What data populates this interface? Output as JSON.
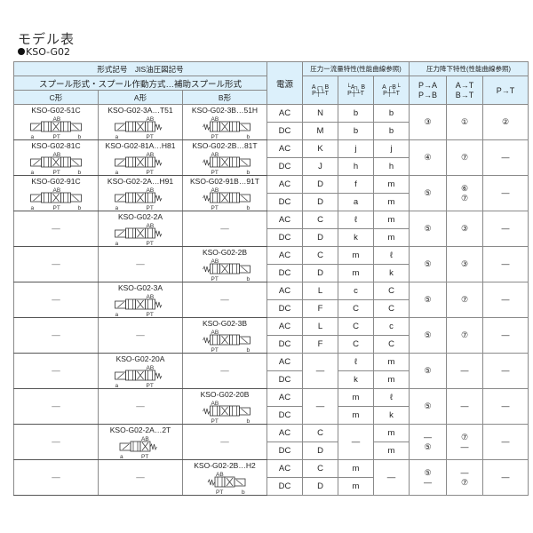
{
  "page": {
    "title": "モデル表",
    "subtitle": "KSO-G02"
  },
  "header": {
    "model_symbol": "形式記号　JIS油圧図記号",
    "spool_type": "スプール形式・スプール作動方式…補助スプール形式",
    "c_type": "C形",
    "a_type": "A形",
    "b_type": "B形",
    "power": "電源",
    "flow_char": "圧力ー流量特性(性能曲線参照)",
    "pressure_drop": "圧力降下特性(性能曲線参照)",
    "flow_symbols": [
      {
        "top": "A┌┐B",
        "bottom": "P┼┴T"
      },
      {
        "top": "└A┐ B",
        "bottom": "P┼┴T"
      },
      {
        "top": "A ┌B└",
        "bottom": "P┼┴T"
      }
    ],
    "pa": [
      "P→A",
      "P→B"
    ],
    "at": [
      "A→T",
      "B→T"
    ],
    "pt": "P→T"
  },
  "symbol_labels": {
    "ports_top": "AB",
    "ports_bottom": "PT",
    "sol_a": "a",
    "sol_b": "b"
  },
  "groups": [
    {
      "c": {
        "model": "KSO-G02-51C",
        "symbol": "double-3pos"
      },
      "a": {
        "model": "KSO-G02-3A…T51",
        "symbol": "single-a"
      },
      "b": {
        "model": "KSO-G02-3B…51H",
        "symbol": "single-b"
      },
      "flow": [
        {
          "ac": "N",
          "dc": "M"
        },
        {
          "ac": "b",
          "dc": "b"
        },
        {
          "ac": "b",
          "dc": "b"
        }
      ],
      "pa": [
        "③"
      ],
      "at": [
        "①"
      ],
      "pt": [
        "②"
      ]
    },
    {
      "c": {
        "model": "KSO-G02-81C",
        "symbol": "double-3pos"
      },
      "a": {
        "model": "KSO-G02-81A…H81",
        "symbol": "single-a"
      },
      "b": {
        "model": "KSO-G02-2B…81T",
        "symbol": "single-b"
      },
      "flow": [
        {
          "ac": "K",
          "dc": "J"
        },
        {
          "ac": "j",
          "dc": "h"
        },
        {
          "ac": "j",
          "dc": "h"
        }
      ],
      "pa": [
        "④"
      ],
      "at": [
        "⑦"
      ],
      "pt": [
        "—"
      ]
    },
    {
      "c": {
        "model": "KSO-G02-91C",
        "symbol": "double-3pos"
      },
      "a": {
        "model": "KSO-G02-2A…H91",
        "symbol": "single-a"
      },
      "b": {
        "model": "KSO-G02-91B…91T",
        "symbol": "single-b"
      },
      "flow": [
        {
          "ac": "D",
          "dc": "D"
        },
        {
          "ac": "f",
          "dc": "a"
        },
        {
          "ac": "m",
          "dc": "m"
        }
      ],
      "pa": [
        "⑤"
      ],
      "at": [
        "⑥",
        "⑦"
      ],
      "pt": [
        "—"
      ]
    },
    {
      "c": null,
      "a": {
        "model": "KSO-G02-2A",
        "symbol": "single-a"
      },
      "b": null,
      "flow": [
        {
          "ac": "C",
          "dc": "D"
        },
        {
          "ac": "ℓ",
          "dc": "k"
        },
        {
          "ac": "m",
          "dc": "m"
        }
      ],
      "pa": [
        "⑤"
      ],
      "at": [
        "③"
      ],
      "pt": [
        "—"
      ]
    },
    {
      "c": null,
      "a": null,
      "b": {
        "model": "KSO-G02-2B",
        "symbol": "single-b"
      },
      "flow": [
        {
          "ac": "C",
          "dc": "D"
        },
        {
          "ac": "m",
          "dc": "m"
        },
        {
          "ac": "ℓ",
          "dc": "k"
        }
      ],
      "pa": [
        "⑤"
      ],
      "at": [
        "③"
      ],
      "pt": [
        "—"
      ]
    },
    {
      "c": null,
      "a": {
        "model": "KSO-G02-3A",
        "symbol": "single-a"
      },
      "b": null,
      "flow": [
        {
          "ac": "L",
          "dc": "F"
        },
        {
          "ac": "c",
          "dc": "C"
        },
        {
          "ac": "C",
          "dc": "C"
        }
      ],
      "pa": [
        "⑤"
      ],
      "at": [
        "⑦"
      ],
      "pt": [
        "—"
      ]
    },
    {
      "c": null,
      "a": null,
      "b": {
        "model": "KSO-G02-3B",
        "symbol": "single-b"
      },
      "flow": [
        {
          "ac": "L",
          "dc": "F"
        },
        {
          "ac": "C",
          "dc": "C"
        },
        {
          "ac": "c",
          "dc": "C"
        }
      ],
      "pa": [
        "⑤"
      ],
      "at": [
        "⑦"
      ],
      "pt": [
        "—"
      ]
    },
    {
      "c": null,
      "a": {
        "model": "KSO-G02-20A",
        "symbol": "single-a"
      },
      "b": null,
      "flow": [
        {
          "merged": "—"
        },
        {
          "ac": "ℓ",
          "dc": "k"
        },
        {
          "ac": "m",
          "dc": "m"
        }
      ],
      "pa": [
        "⑤"
      ],
      "at": [
        "—"
      ],
      "pt": [
        "—"
      ]
    },
    {
      "c": null,
      "a": null,
      "b": {
        "model": "KSO-G02-20B",
        "symbol": "single-b"
      },
      "flow": [
        {
          "merged": "—"
        },
        {
          "ac": "m",
          "dc": "m"
        },
        {
          "ac": "ℓ",
          "dc": "k"
        }
      ],
      "pa": [
        "⑤"
      ],
      "at": [
        "—"
      ],
      "pt": [
        "—"
      ]
    },
    {
      "c": null,
      "a": {
        "model": "KSO-G02-2A…2T",
        "symbol": "single-a-2pos"
      },
      "b": null,
      "flow": [
        {
          "ac": "C",
          "dc": "D"
        },
        {
          "merged": "—"
        },
        {
          "ac": "m",
          "dc": "m"
        }
      ],
      "pa": [
        "—",
        "⑤"
      ],
      "at": [
        "⑦",
        "—"
      ],
      "pt": [
        "—"
      ]
    },
    {
      "c": null,
      "a": null,
      "b": {
        "model": "KSO-G02-2B…H2",
        "symbol": "single-b-2pos"
      },
      "flow": [
        {
          "ac": "C",
          "dc": "D"
        },
        {
          "ac": "m",
          "dc": "m"
        },
        {
          "merged": "—"
        }
      ],
      "pa": [
        "⑤",
        "—"
      ],
      "at": [
        "—",
        "⑦"
      ],
      "pt": [
        "—"
      ]
    }
  ],
  "power": {
    "ac": "AC",
    "dc": "DC"
  },
  "empty": "—",
  "colors": {
    "header_bg": "#dcf0fb",
    "border": "#8a8a8a",
    "text": "#222222"
  }
}
